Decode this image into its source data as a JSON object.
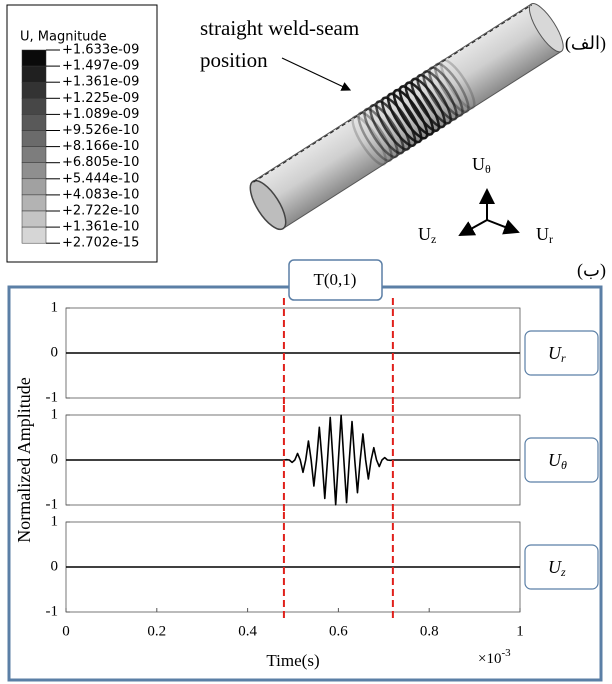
{
  "legend": {
    "title": "U, Magnitude",
    "labels": [
      "+1.633e-09",
      "+1.497e-09",
      "+1.361e-09",
      "+1.225e-09",
      "+1.089e-09",
      "+9.526e-10",
      "+8.166e-10",
      "+6.805e-10",
      "+5.444e-10",
      "+4.083e-10",
      "+2.722e-10",
      "+1.361e-10",
      "+2.702e-15"
    ],
    "colors": [
      "#0a0a0a",
      "#202020",
      "#333333",
      "#474747",
      "#595959",
      "#6b6b6b",
      "#7d7d7d",
      "#8f8f8f",
      "#a1a1a1",
      "#b3b3b3",
      "#c4c4c4",
      "#d6d6d6"
    ]
  },
  "annotations": {
    "weld_seam": [
      "straight weld-seam",
      "position"
    ],
    "panel_a": "(الف)",
    "panel_b": "(ب)",
    "signal": "T(0,1)"
  },
  "triad": [
    {
      "base": "U",
      "sub": "θ"
    },
    {
      "base": "U",
      "sub": "r"
    },
    {
      "base": "U",
      "sub": "z"
    }
  ],
  "chart_data": [
    {
      "type": "line",
      "label": {
        "base": "U",
        "sub": "r"
      },
      "xlim": [
        0,
        1
      ],
      "ylim": [
        -1,
        1
      ],
      "yticks": [
        -1,
        0,
        1
      ],
      "vlines": [
        0.48,
        0.72
      ],
      "vline_color": "#e0201b",
      "series": [
        {
          "color": "#000000",
          "x": [
            0,
            1
          ],
          "values": [
            0,
            0
          ]
        }
      ]
    },
    {
      "type": "line",
      "label": {
        "base": "U",
        "sub": "θ"
      },
      "ylabel": "Normalized Amplitude",
      "xlim": [
        0,
        1
      ],
      "ylim": [
        -1,
        1
      ],
      "yticks": [
        -1,
        0,
        1
      ],
      "vlines": [
        0.48,
        0.72
      ],
      "vline_color": "#e0201b",
      "series": [
        {
          "color": "#000000",
          "x": [
            0,
            0.48,
            0.486,
            0.492,
            0.498,
            0.504,
            0.51,
            0.516,
            0.522,
            0.528,
            0.534,
            0.54,
            0.546,
            0.552,
            0.558,
            0.564,
            0.57,
            0.576,
            0.582,
            0.588,
            0.594,
            0.6,
            0.606,
            0.612,
            0.618,
            0.624,
            0.63,
            0.636,
            0.642,
            0.648,
            0.654,
            0.66,
            0.666,
            0.672,
            0.678,
            0.684,
            0.69,
            0.696,
            0.702,
            0.708,
            0.714,
            0.72,
            1
          ],
          "values": [
            0,
            0,
            0.006,
            0,
            -0.054,
            0,
            0.146,
            0,
            -0.273,
            0,
            0.422,
            0,
            -0.578,
            0,
            0.727,
            0,
            -0.854,
            0,
            0.946,
            0,
            -0.994,
            0,
            0.994,
            0,
            -0.946,
            0,
            0.854,
            0,
            -0.727,
            0,
            0.578,
            0,
            -0.422,
            0,
            0.273,
            0,
            -0.146,
            0,
            0.054,
            0,
            -0.006,
            0,
            0
          ]
        }
      ]
    },
    {
      "type": "line",
      "label": {
        "base": "U",
        "sub": "z"
      },
      "xlabel": "Time(s)",
      "x_multiplier": {
        "base": "×10",
        "sup": "-3"
      },
      "xlim": [
        0,
        1
      ],
      "xticks": [
        0,
        0.2,
        0.4,
        0.6,
        0.8,
        1
      ],
      "ylim": [
        -1,
        1
      ],
      "yticks": [
        -1,
        0,
        1
      ],
      "vlines": [
        0.48,
        0.72
      ],
      "vline_color": "#e0201b",
      "series": [
        {
          "color": "#000000",
          "x": [
            0,
            1
          ],
          "values": [
            0,
            0
          ]
        }
      ]
    }
  ]
}
